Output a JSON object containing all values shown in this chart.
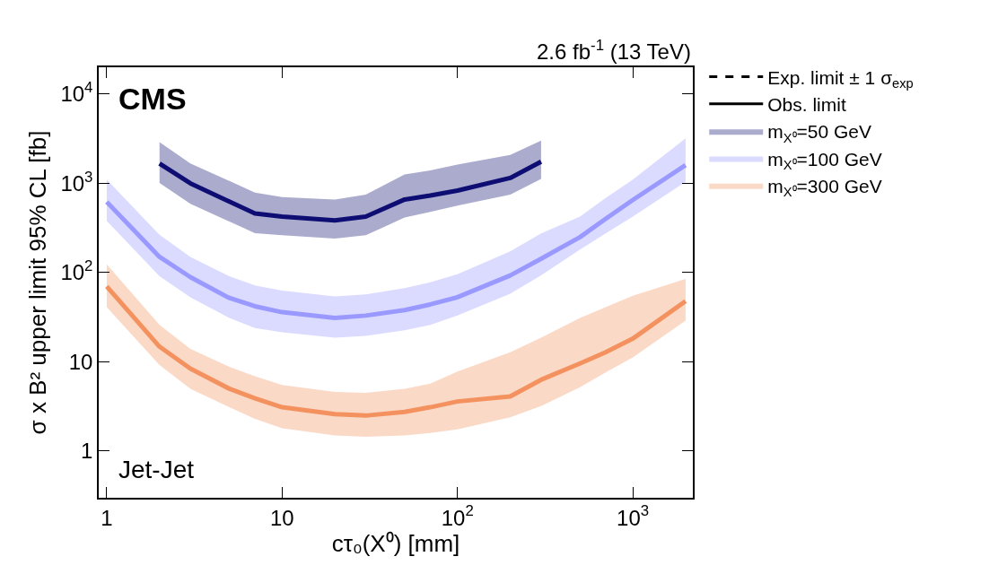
{
  "chart_data": {
    "type": "line",
    "xlabel": "cτ₀(X⁰) [mm]",
    "ylabel": "σ x B² upper limit 95% CL [fb]",
    "annotations": [
      "2.6 fb$^{-1}$ (13 TeV)",
      "CMS",
      "Jet-Jet"
    ],
    "log": "xy",
    "xlim": [
      0.9,
      2200
    ],
    "ylim": [
      0.3,
      20000
    ],
    "xticks": [
      1,
      10,
      {
        "value": 100,
        "label": "10$^{2}$"
      },
      {
        "value": 1000,
        "label": "10$^{3}$"
      }
    ],
    "yticks": [
      1,
      10,
      {
        "value": 100,
        "label": "10$^{2}$"
      },
      {
        "value": 1000,
        "label": "10$^{3}$"
      },
      {
        "value": 10000,
        "label": "10$^{4}$"
      }
    ],
    "grid": false,
    "legend": "right",
    "series": [
      {
        "name": "Exp. limit ± 1 σ$_{exp}$",
        "color": "#000000",
        "line_style": "dashed"
      },
      {
        "name": "Obs. limit",
        "color": "#000000",
        "line_style": "solid"
      },
      {
        "name": "m$_{X⁰}$=50 GeV",
        "color": "#0d0d73",
        "line_style": "solid",
        "x": [
          2,
          3,
          7,
          10,
          20,
          30,
          50,
          70,
          100,
          200,
          300
        ],
        "values": [
          1670,
          1000,
          460,
          425,
          385,
          425,
          660,
          730,
          830,
          1150,
          1750
        ],
        "lower": [
          1010,
          590,
          277,
          262,
          241,
          262,
          414,
          480,
          565,
          750,
          1120
        ],
        "upper": [
          2890,
          1670,
          790,
          700,
          660,
          750,
          1260,
          1400,
          1620,
          2080,
          3020
        ]
      },
      {
        "name": "m$_{X⁰}$=100 GeV",
        "color": "#9999ff",
        "line_style": "solid",
        "x": [
          1,
          2,
          3,
          5,
          7,
          10,
          20,
          30,
          50,
          70,
          100,
          200,
          300,
          500,
          700,
          1000,
          2000
        ],
        "values": [
          620,
          150,
          89,
          52,
          42,
          36,
          31,
          33,
          38,
          44,
          53,
          93,
          143,
          250,
          400,
          650,
          1600
        ],
        "lower": [
          380,
          91,
          53,
          31,
          24,
          21.5,
          18.7,
          19.6,
          22.6,
          26,
          33,
          58,
          93,
          181,
          275,
          425,
          1040
        ],
        "upper": [
          1100,
          265,
          150,
          91,
          72,
          63,
          54,
          57,
          67,
          78,
          96,
          173,
          275,
          425,
          685,
          1100,
          3200
        ]
      },
      {
        "name": "m$_{X⁰}$=300 GeV",
        "color": "#f4925f",
        "line_style": "solid",
        "x": [
          1,
          2,
          3,
          5,
          7,
          10,
          20,
          30,
          50,
          70,
          100,
          200,
          300,
          500,
          700,
          1000,
          2000
        ],
        "values": [
          70,
          14.8,
          8.4,
          5.0,
          3.9,
          3.1,
          2.6,
          2.5,
          2.75,
          3.1,
          3.6,
          4.1,
          6.3,
          9.6,
          12.8,
          18.2,
          48
        ],
        "lower": [
          41,
          9.2,
          5.0,
          3.1,
          2.3,
          1.8,
          1.5,
          1.45,
          1.5,
          1.6,
          1.75,
          2.4,
          3.2,
          5.2,
          7.6,
          11.2,
          29
        ],
        "upper": [
          124,
          26,
          14,
          8.8,
          6.9,
          5.5,
          4.6,
          4.5,
          5.0,
          5.7,
          7.8,
          12.8,
          18.7,
          31,
          41,
          55,
          85
        ]
      }
    ]
  }
}
